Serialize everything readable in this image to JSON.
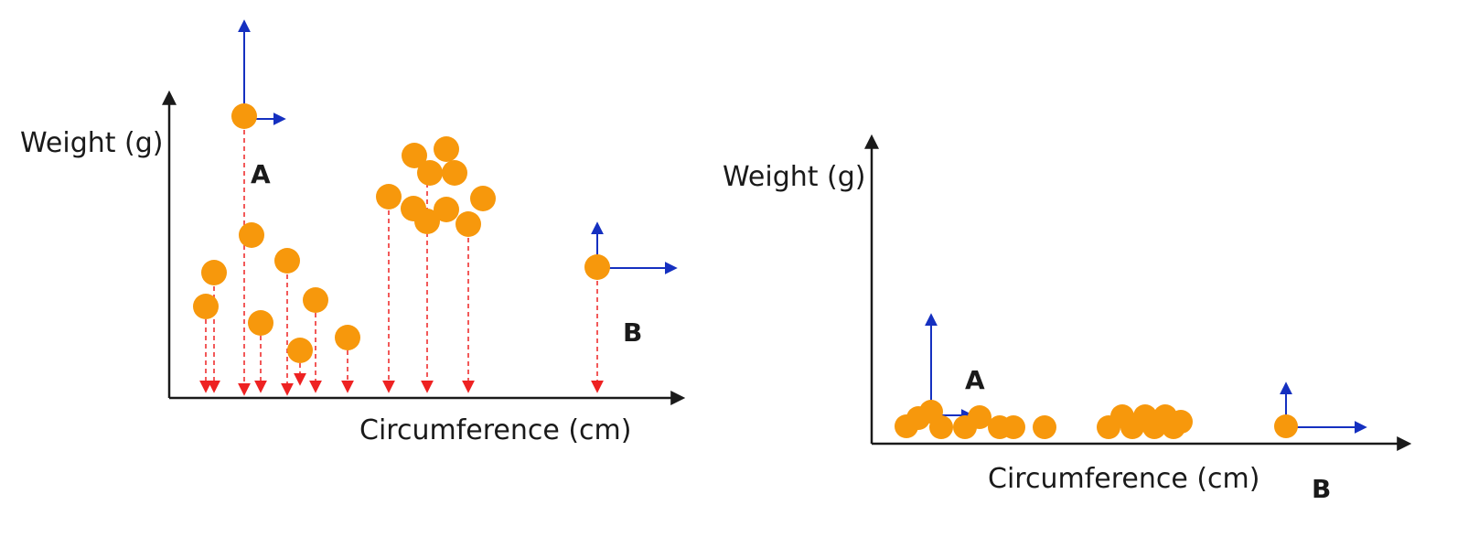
{
  "colors": {
    "point": "#f7980c",
    "axis": "#1a1a1a",
    "projection": "#ee2222",
    "vector": "#1530c0"
  },
  "left_panel": {
    "ylabel": "Weight (g)",
    "xlabel": "Circumference (cm)",
    "point_a_label": "A",
    "point_b_label": "B"
  },
  "right_panel": {
    "ylabel": "Weight (g)",
    "xlabel": "Circumference (cm)",
    "point_a_label": "A",
    "point_b_label": "B"
  }
}
